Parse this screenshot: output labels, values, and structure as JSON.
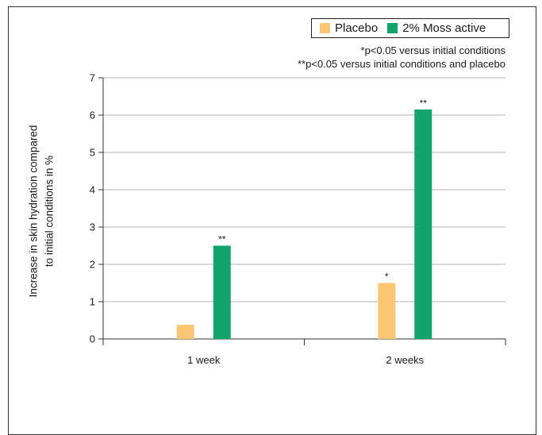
{
  "legend": {
    "items": [
      {
        "label": "Placebo",
        "color": "#fdc675"
      },
      {
        "label": "2% Moss active",
        "color": "#12a46d"
      }
    ]
  },
  "notes": {
    "line1": "*p<0.05 versus initial conditions",
    "line2": "**p<0.05 versus initial conditions and placebo"
  },
  "chart_data": {
    "type": "bar",
    "categories": [
      "1 week",
      "2 weeks"
    ],
    "series": [
      {
        "name": "Placebo",
        "values": [
          0.38,
          1.5
        ],
        "significance": [
          "",
          "*"
        ],
        "color": "#fdc675"
      },
      {
        "name": "2% Moss active",
        "values": [
          2.5,
          6.15
        ],
        "significance": [
          "**",
          "**"
        ],
        "color": "#12a46d"
      }
    ],
    "ylabel_lines": [
      "Increase in skin hydration compared",
      "to initial conditions in %"
    ],
    "ylim": [
      0,
      7
    ],
    "yticks": [
      "0",
      "1",
      "2",
      "3",
      "4",
      "5",
      "6",
      "7"
    ],
    "grid": true,
    "legend_position": "top-right"
  }
}
